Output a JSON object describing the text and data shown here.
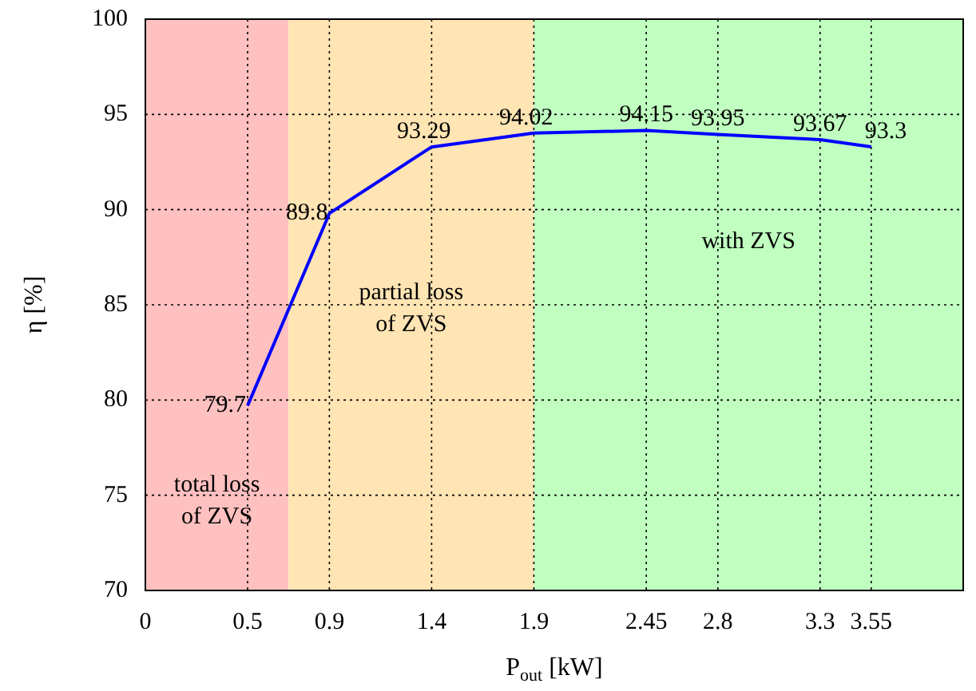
{
  "chart_data": {
    "type": "line",
    "xlabel": "P$_{out}$ [kW]",
    "ylabel": "η [%]",
    "x": [
      0.5,
      0.9,
      1.4,
      1.9,
      2.45,
      2.8,
      3.3,
      3.55
    ],
    "series": [
      {
        "color": "#0000ff",
        "values": [
          79.7,
          89.8,
          93.29,
          94.02,
          94.15,
          93.95,
          93.67,
          93.3
        ]
      }
    ],
    "xlim": [
      0,
      4
    ],
    "xticks": [
      0,
      0.5,
      0.9,
      1.4,
      1.9,
      2.45,
      2.8,
      3.3,
      3.55
    ],
    "ylim": [
      70,
      100
    ],
    "yticks": [
      70,
      75,
      80,
      85,
      90,
      95,
      100
    ],
    "bands": [
      {
        "axis": "x",
        "from": 0,
        "to": 0.7,
        "label": "total loss\nof ZVS",
        "color": "#ffc0c0"
      },
      {
        "axis": "x",
        "from": 0.7,
        "to": 1.9,
        "label": "partial loss\nof ZVS",
        "color": "#ffe4b4"
      },
      {
        "axis": "x",
        "from": 1.9,
        "to": 4,
        "label": "with ZVS",
        "color": "#c0ffc0"
      }
    ],
    "grid": true,
    "data_labels": true,
    "marker": "none",
    "line_style": "solid",
    "legend": false
  }
}
